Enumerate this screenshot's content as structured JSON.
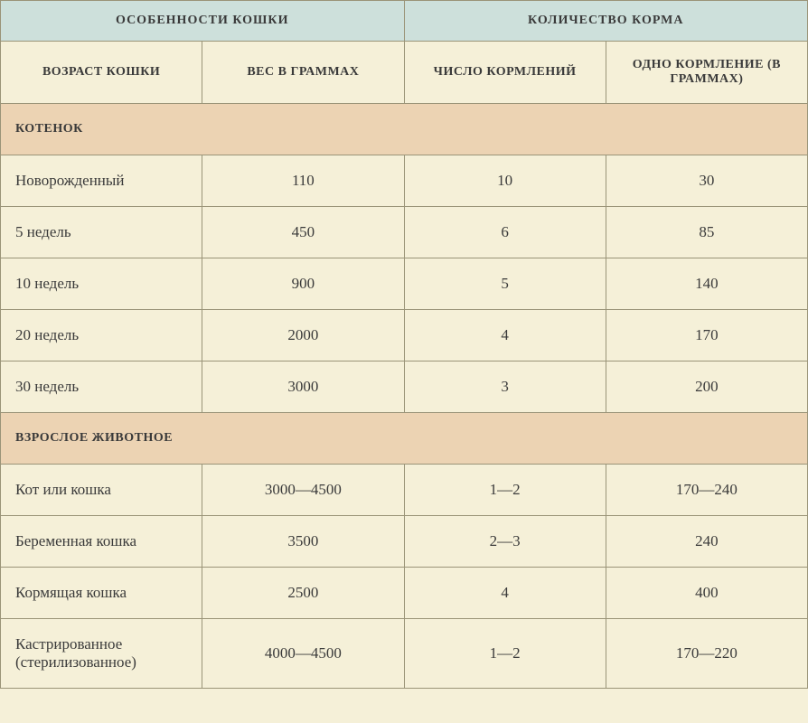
{
  "headers": {
    "top_left": "ОСОБЕННОСТИ КОШКИ",
    "top_right": "КОЛИЧЕСТВО КОРМА",
    "col1": "ВОЗРАСТ КОШКИ",
    "col2": "ВЕС В ГРАММАХ",
    "col3": "ЧИСЛО КОРМЛЕНИЙ",
    "col4": "ОДНО КОРМЛЕНИЕ (В ГРАММАХ)"
  },
  "sections": [
    {
      "title": "КОТЕНОК",
      "rows": [
        {
          "label": "Новорожденный",
          "weight": "110",
          "feedings": "10",
          "per_feeding": "30"
        },
        {
          "label": "5 недель",
          "weight": "450",
          "feedings": "6",
          "per_feeding": "85"
        },
        {
          "label": "10 недель",
          "weight": "900",
          "feedings": "5",
          "per_feeding": "140"
        },
        {
          "label": "20 недель",
          "weight": "2000",
          "feedings": "4",
          "per_feeding": "170"
        },
        {
          "label": "30 недель",
          "weight": "3000",
          "feedings": "3",
          "per_feeding": "200"
        }
      ]
    },
    {
      "title": "ВЗРОСЛОЕ ЖИВОТНОЕ",
      "rows": [
        {
          "label": "Кот или кошка",
          "weight": "3000—4500",
          "feedings": "1—2",
          "per_feeding": "170—240"
        },
        {
          "label": "Беременная кошка",
          "weight": "3500",
          "feedings": "2—3",
          "per_feeding": "240"
        },
        {
          "label": "Кормящая кошка",
          "weight": "2500",
          "feedings": "4",
          "per_feeding": "400"
        },
        {
          "label": "Кастрированное (стерилизованное)",
          "weight": "4000—4500",
          "feedings": "1—2",
          "per_feeding": "170—220"
        }
      ]
    }
  ],
  "style": {
    "colors": {
      "page_bg": "#f5f0d8",
      "header_bg": "#cde0db",
      "section_bg": "#ecd3b3",
      "row_bg": "#f5f0d8",
      "border": "#9a9478",
      "text": "#3a3a3a"
    },
    "font_family": "Georgia, Times New Roman, serif",
    "header_fontsize_pt": 11,
    "subheader_fontsize_pt": 11,
    "section_fontsize_pt": 11,
    "cell_fontsize_pt": 13,
    "col_widths_pct": [
      25,
      25,
      25,
      25
    ]
  }
}
